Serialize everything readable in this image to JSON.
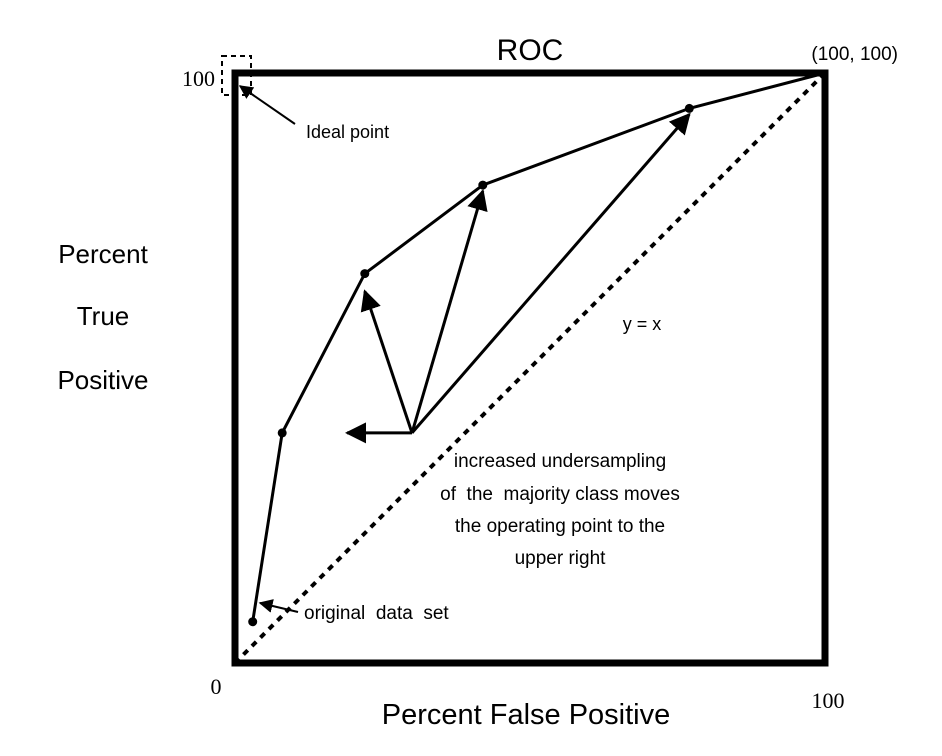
{
  "chart_data": {
    "type": "line",
    "title": "ROC",
    "xlabel": "Percent False Positive",
    "ylabel_lines": [
      "Percent",
      "True",
      "Positive"
    ],
    "xlim": [
      0,
      100
    ],
    "ylim": [
      0,
      100
    ],
    "x_ticks": [
      {
        "value": 0,
        "label": "0"
      },
      {
        "value": 100,
        "label": "100"
      }
    ],
    "y_ticks": [
      {
        "value": 100,
        "label": "100"
      }
    ],
    "grid": false,
    "legend": "none",
    "series": [
      {
        "x": [
          3,
          8,
          22,
          42,
          77,
          100
        ],
        "y": [
          7,
          39,
          66,
          81,
          94,
          100
        ]
      }
    ],
    "diagonal": {
      "label": "y = x",
      "from": [
        0,
        0
      ],
      "to": [
        100,
        100
      ]
    },
    "annotations": {
      "corner_label": "(100, 100)",
      "ideal_point": {
        "label": "Ideal point",
        "at": [
          0,
          100
        ]
      },
      "original_point": {
        "label": "original  data  set",
        "at": [
          3,
          7
        ]
      },
      "undersampling_text": [
        "increased undersampling",
        "of  the  majority class moves",
        "the operating point to the",
        "upper right"
      ],
      "arrow_origin": [
        30,
        39
      ],
      "arrow_targets": [
        [
          19,
          39
        ],
        [
          22,
          63
        ],
        [
          42,
          80
        ],
        [
          77,
          93
        ]
      ]
    },
    "colors": {
      "line": "#000000",
      "frame": "#000000",
      "background": "#ffffff"
    }
  }
}
